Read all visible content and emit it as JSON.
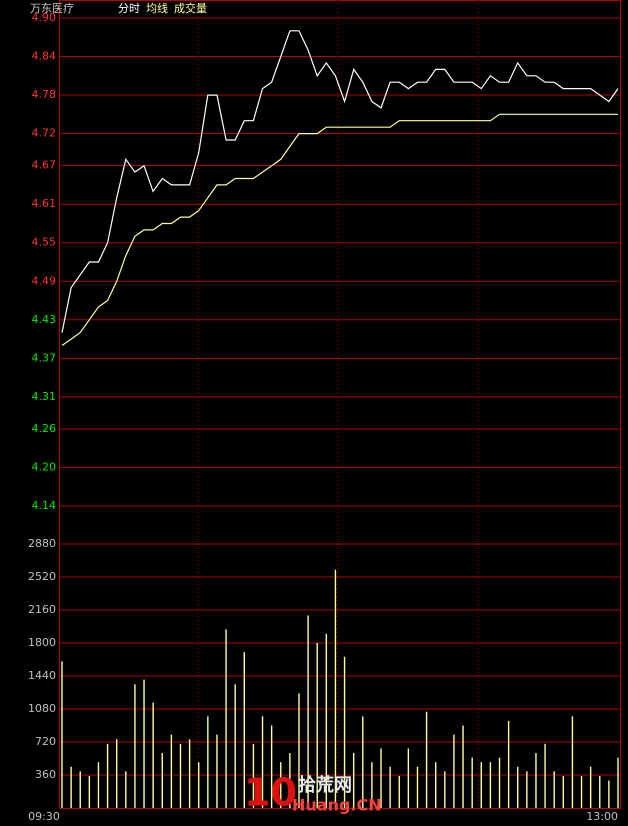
{
  "chart_data": [
    {
      "type": "line",
      "title": "万东医疗",
      "series": [
        {
          "name": "分时",
          "color": "#ffffff",
          "values": [
            4.41,
            4.48,
            4.5,
            4.52,
            4.52,
            4.55,
            4.62,
            4.68,
            4.66,
            4.67,
            4.63,
            4.65,
            4.64,
            4.64,
            4.64,
            4.69,
            4.78,
            4.78,
            4.71,
            4.71,
            4.74,
            4.74,
            4.79,
            4.8,
            4.84,
            4.88,
            4.88,
            4.85,
            4.81,
            4.83,
            4.81,
            4.77,
            4.82,
            4.8,
            4.77,
            4.76,
            4.8,
            4.8,
            4.79,
            4.8,
            4.8,
            4.82,
            4.82,
            4.8,
            4.8,
            4.8,
            4.79,
            4.81,
            4.8,
            4.8,
            4.83,
            4.81,
            4.81,
            4.8,
            4.8,
            4.79,
            4.79,
            4.79,
            4.79,
            4.78,
            4.77,
            4.79
          ]
        },
        {
          "name": "均线",
          "color": "#ffff99",
          "values": [
            4.39,
            4.4,
            4.41,
            4.43,
            4.45,
            4.46,
            4.49,
            4.53,
            4.56,
            4.57,
            4.57,
            4.58,
            4.58,
            4.59,
            4.59,
            4.6,
            4.62,
            4.64,
            4.64,
            4.65,
            4.65,
            4.65,
            4.66,
            4.67,
            4.68,
            4.7,
            4.72,
            4.72,
            4.72,
            4.73,
            4.73,
            4.73,
            4.73,
            4.73,
            4.73,
            4.73,
            4.73,
            4.74,
            4.74,
            4.74,
            4.74,
            4.74,
            4.74,
            4.74,
            4.74,
            4.74,
            4.74,
            4.74,
            4.75,
            4.75,
            4.75,
            4.75,
            4.75,
            4.75,
            4.75,
            4.75,
            4.75,
            4.75,
            4.75,
            4.75,
            4.75,
            4.75
          ]
        }
      ],
      "ylim": [
        4.14,
        4.9
      ],
      "yticks": [
        {
          "value": 4.9,
          "label": "4.90"
        },
        4.84,
        4.78,
        4.72,
        4.67,
        4.61,
        4.55,
        4.49,
        4.43,
        4.37,
        4.31,
        4.26,
        {
          "value": 4.2,
          "label": "4.20"
        },
        4.14
      ],
      "ytick_colors": [
        "#ff3232",
        "#ff3232",
        "#ff3232",
        "#ff3232",
        "#ff3232",
        "#ff3232",
        "#ff3232",
        "#ff3232",
        "#00e600",
        "#00e600",
        "#00e600",
        "#00e600",
        "#00e600",
        "#00e600"
      ],
      "grid": true
    },
    {
      "type": "bar",
      "series": [
        {
          "name": "成交量",
          "color": "#ffff99",
          "values": [
            1600,
            450,
            400,
            350,
            500,
            700,
            750,
            400,
            1350,
            1400,
            1150,
            600,
            800,
            700,
            750,
            500,
            1000,
            800,
            1950,
            1350,
            1700,
            700,
            1000,
            900,
            500,
            600,
            1250,
            2100,
            1800,
            1900,
            2600,
            1650,
            600,
            1000,
            500,
            650,
            450,
            350,
            650,
            450,
            1050,
            500,
            400,
            800,
            900,
            550,
            500,
            500,
            550,
            950,
            450,
            400,
            600,
            700,
            400,
            350,
            1000,
            350,
            450,
            350,
            300,
            550
          ]
        }
      ],
      "categories": [
        "09:30",
        null,
        null,
        null,
        null,
        null,
        null,
        null,
        null,
        null,
        null,
        null,
        null,
        null,
        null,
        null,
        null,
        null,
        null,
        null,
        null,
        null,
        null,
        null,
        null,
        null,
        null,
        null,
        null,
        null,
        null,
        null,
        null,
        null,
        null,
        null,
        null,
        null,
        null,
        null,
        null,
        null,
        null,
        null,
        null,
        null,
        null,
        null,
        null,
        null,
        null,
        null,
        null,
        null,
        null,
        null,
        null,
        null,
        null,
        null,
        null,
        "13:00"
      ],
      "ylim": [
        0,
        2880
      ],
      "yticks": [
        2880,
        2520,
        2160,
        1800,
        1440,
        1080,
        720,
        360
      ],
      "grid": true
    }
  ],
  "watermark": {
    "number": "10",
    "name": "拾荒网",
    "site": "Huang.CN"
  }
}
